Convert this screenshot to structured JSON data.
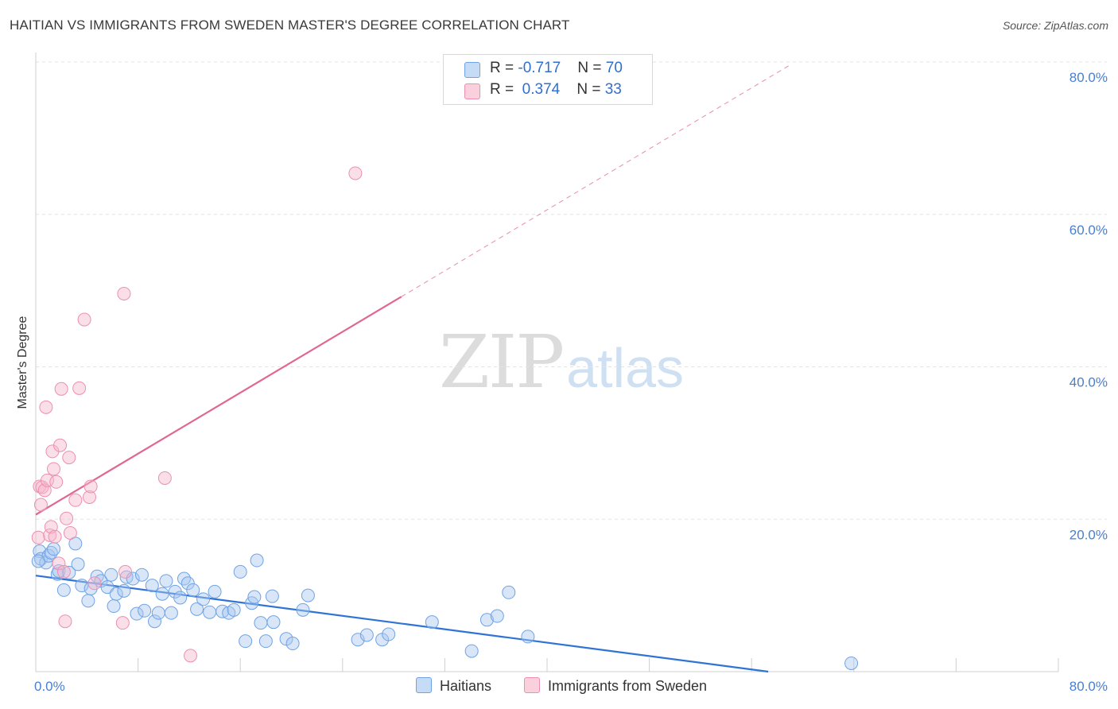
{
  "title": "HAITIAN VS IMMIGRANTS FROM SWEDEN MASTER'S DEGREE CORRELATION CHART",
  "source": "Source: ZipAtlas.com",
  "watermark": {
    "zip": "ZIP",
    "atlas": "atlas"
  },
  "legend": {
    "rows": [
      {
        "r_label": "R = ",
        "r_value": "-0.717",
        "n_label": "N = ",
        "n_value": "70",
        "color": "#a9c8f0"
      },
      {
        "r_label": "R = ",
        "r_value": " 0.374",
        "n_label": "N = ",
        "n_value": "33",
        "color": "#f6b8cb"
      }
    ]
  },
  "bottom_legend": [
    {
      "label": "Haitians",
      "color": "#a9c8f0"
    },
    {
      "label": "Immigrants from Sweden",
      "color": "#f6b8cb"
    }
  ],
  "chart_data": {
    "type": "scatter",
    "ylabel": "Master's Degree",
    "xlim": [
      0,
      80
    ],
    "ylim": [
      0,
      80
    ],
    "x_tick_labels": [
      "0.0%",
      "80.0%"
    ],
    "y_tick_labels": [
      "20.0%",
      "40.0%",
      "60.0%",
      "80.0%"
    ],
    "y_ticks": [
      20,
      40,
      60,
      80
    ],
    "series": [
      {
        "name": "Haitians",
        "color": "#6fa3e6",
        "fill": "#a9c8f0",
        "trend": {
          "x": [
            0,
            57.3
          ],
          "y": [
            12.6,
            0
          ],
          "color": "#2f73d4",
          "dashed_x": null
        },
        "points": [
          [
            0.3,
            15.8
          ],
          [
            0.4,
            14.8
          ],
          [
            0.8,
            14.3
          ],
          [
            1.0,
            15.2
          ],
          [
            1.2,
            15.6
          ],
          [
            1.4,
            16.1
          ],
          [
            1.7,
            12.8
          ],
          [
            1.8,
            13.2
          ],
          [
            2.2,
            10.7
          ],
          [
            2.6,
            13.0
          ],
          [
            3.1,
            16.8
          ],
          [
            3.3,
            14.1
          ],
          [
            3.6,
            11.3
          ],
          [
            4.1,
            9.3
          ],
          [
            4.3,
            10.9
          ],
          [
            4.8,
            12.5
          ],
          [
            5.1,
            11.9
          ],
          [
            5.6,
            11.1
          ],
          [
            5.9,
            12.7
          ],
          [
            6.1,
            8.6
          ],
          [
            6.3,
            10.2
          ],
          [
            6.9,
            10.6
          ],
          [
            7.1,
            12.4
          ],
          [
            7.6,
            12.2
          ],
          [
            7.9,
            7.6
          ],
          [
            8.3,
            12.7
          ],
          [
            8.5,
            8.0
          ],
          [
            9.1,
            11.3
          ],
          [
            9.3,
            6.6
          ],
          [
            9.6,
            7.7
          ],
          [
            9.9,
            10.2
          ],
          [
            10.2,
            11.9
          ],
          [
            10.6,
            7.7
          ],
          [
            10.9,
            10.5
          ],
          [
            11.3,
            9.7
          ],
          [
            11.6,
            12.2
          ],
          [
            11.9,
            11.6
          ],
          [
            12.3,
            10.7
          ],
          [
            12.6,
            8.2
          ],
          [
            13.1,
            9.5
          ],
          [
            13.6,
            7.8
          ],
          [
            14.0,
            10.5
          ],
          [
            14.6,
            7.9
          ],
          [
            15.1,
            7.7
          ],
          [
            15.5,
            8.1
          ],
          [
            16.0,
            13.1
          ],
          [
            16.4,
            4.0
          ],
          [
            16.9,
            9.0
          ],
          [
            17.1,
            9.8
          ],
          [
            17.3,
            14.6
          ],
          [
            17.6,
            6.4
          ],
          [
            18.0,
            4.0
          ],
          [
            18.6,
            6.5
          ],
          [
            18.5,
            9.9
          ],
          [
            19.6,
            4.3
          ],
          [
            20.1,
            3.7
          ],
          [
            20.9,
            8.1
          ],
          [
            21.3,
            10.0
          ],
          [
            25.2,
            4.2
          ],
          [
            25.9,
            4.8
          ],
          [
            27.1,
            4.2
          ],
          [
            27.6,
            4.9
          ],
          [
            31.0,
            6.5
          ],
          [
            34.1,
            2.7
          ],
          [
            35.3,
            6.8
          ],
          [
            36.1,
            7.3
          ],
          [
            37.0,
            10.4
          ],
          [
            38.5,
            4.6
          ],
          [
            63.8,
            1.1
          ],
          [
            0.2,
            14.5
          ]
        ]
      },
      {
        "name": "Immigrants from Sweden",
        "color": "#ec8fb0",
        "fill": "#f6b8cb",
        "trend": {
          "x": [
            0,
            28.6
          ],
          "y": [
            20.6,
            49.2
          ],
          "color": "#e06693",
          "dashed_x": [
            28.6,
            59.0
          ]
        },
        "points": [
          [
            0.2,
            17.6
          ],
          [
            0.3,
            24.3
          ],
          [
            0.4,
            21.9
          ],
          [
            0.5,
            24.2
          ],
          [
            0.7,
            23.8
          ],
          [
            0.8,
            34.7
          ],
          [
            0.9,
            25.1
          ],
          [
            1.1,
            17.9
          ],
          [
            1.2,
            19.0
          ],
          [
            1.3,
            28.9
          ],
          [
            1.4,
            26.6
          ],
          [
            1.5,
            17.7
          ],
          [
            1.6,
            24.9
          ],
          [
            1.8,
            14.2
          ],
          [
            1.9,
            29.7
          ],
          [
            2.0,
            37.1
          ],
          [
            2.2,
            13.1
          ],
          [
            2.3,
            6.6
          ],
          [
            2.4,
            20.1
          ],
          [
            2.6,
            28.1
          ],
          [
            2.7,
            18.2
          ],
          [
            3.1,
            22.5
          ],
          [
            3.4,
            37.2
          ],
          [
            3.8,
            46.2
          ],
          [
            4.2,
            22.9
          ],
          [
            4.3,
            24.3
          ],
          [
            4.6,
            11.6
          ],
          [
            6.8,
            6.4
          ],
          [
            6.9,
            49.6
          ],
          [
            7.0,
            13.1
          ],
          [
            10.1,
            25.4
          ],
          [
            12.1,
            2.1
          ],
          [
            25.0,
            65.4
          ]
        ]
      }
    ]
  }
}
